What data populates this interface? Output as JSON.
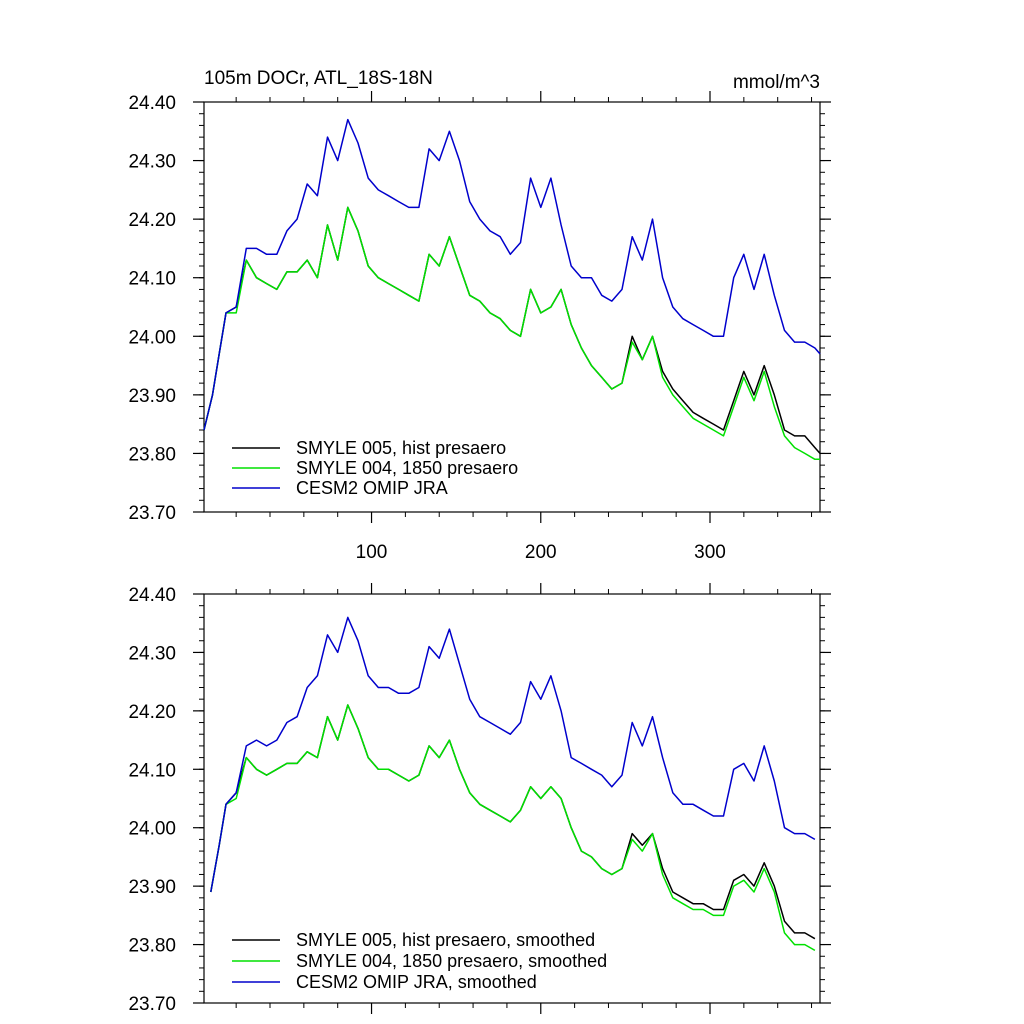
{
  "figure": {
    "title_left": "105m DOCr, ATL_18S-18N",
    "title_right": "mmol/m^3"
  },
  "chart_data": [
    {
      "type": "line",
      "title": "105m DOCr, ATL_18S-18N",
      "units": "mmol/m^3",
      "xlim": [
        1,
        365
      ],
      "ylim": [
        23.7,
        24.4
      ],
      "y_ticks": [
        "23.70",
        "23.80",
        "23.90",
        "24.00",
        "24.10",
        "24.20",
        "24.30",
        "24.40"
      ],
      "x_ticks": [
        "100",
        "200",
        "300"
      ],
      "x_tick_values": [
        100,
        200,
        300
      ],
      "legend_position": "bottom-left",
      "x": [
        1,
        6,
        10,
        14,
        20,
        26,
        32,
        38,
        44,
        50,
        56,
        62,
        68,
        74,
        80,
        86,
        92,
        98,
        104,
        110,
        116,
        122,
        128,
        134,
        140,
        146,
        152,
        158,
        164,
        170,
        176,
        182,
        188,
        194,
        200,
        206,
        212,
        218,
        224,
        230,
        236,
        242,
        248,
        254,
        260,
        266,
        272,
        278,
        284,
        290,
        296,
        302,
        308,
        314,
        320,
        326,
        332,
        338,
        344,
        350,
        356,
        362,
        365
      ],
      "series": [
        {
          "name": "SMYLE 005, hist presaero",
          "color": "#000000",
          "values": [
            23.84,
            23.9,
            23.97,
            24.04,
            24.05,
            24.13,
            24.1,
            24.09,
            24.08,
            24.11,
            24.11,
            24.13,
            24.1,
            24.19,
            24.13,
            24.22,
            24.18,
            24.12,
            24.1,
            24.09,
            24.08,
            24.07,
            24.06,
            24.14,
            24.12,
            24.17,
            24.12,
            24.07,
            24.06,
            24.04,
            24.03,
            24.01,
            24.0,
            24.08,
            24.04,
            24.05,
            24.08,
            24.02,
            23.98,
            23.95,
            23.93,
            23.91,
            23.92,
            24.0,
            23.96,
            24.0,
            23.94,
            23.91,
            23.89,
            23.87,
            23.86,
            23.85,
            23.84,
            23.89,
            23.94,
            23.9,
            23.95,
            23.9,
            23.84,
            23.83,
            23.83,
            23.81,
            23.8
          ]
        },
        {
          "name": "SMYLE 004, 1850 presaero",
          "color": "#00e000",
          "values": [
            23.84,
            23.9,
            23.97,
            24.04,
            24.04,
            24.13,
            24.1,
            24.09,
            24.08,
            24.11,
            24.11,
            24.13,
            24.1,
            24.19,
            24.13,
            24.22,
            24.18,
            24.12,
            24.1,
            24.09,
            24.08,
            24.07,
            24.06,
            24.14,
            24.12,
            24.17,
            24.12,
            24.07,
            24.06,
            24.04,
            24.03,
            24.01,
            24.0,
            24.08,
            24.04,
            24.05,
            24.08,
            24.02,
            23.98,
            23.95,
            23.93,
            23.91,
            23.92,
            23.99,
            23.96,
            24.0,
            23.93,
            23.9,
            23.88,
            23.86,
            23.85,
            23.84,
            23.83,
            23.88,
            23.93,
            23.89,
            23.94,
            23.88,
            23.83,
            23.81,
            23.8,
            23.79,
            23.79
          ]
        },
        {
          "name": "CESM2 OMIP JRA",
          "color": "#0000cc",
          "values": [
            23.84,
            23.9,
            23.97,
            24.04,
            24.05,
            24.15,
            24.15,
            24.14,
            24.14,
            24.18,
            24.2,
            24.26,
            24.24,
            24.34,
            24.3,
            24.37,
            24.33,
            24.27,
            24.25,
            24.24,
            24.23,
            24.22,
            24.22,
            24.32,
            24.3,
            24.35,
            24.3,
            24.23,
            24.2,
            24.18,
            24.17,
            24.14,
            24.16,
            24.27,
            24.22,
            24.27,
            24.19,
            24.12,
            24.1,
            24.1,
            24.07,
            24.06,
            24.08,
            24.17,
            24.13,
            24.2,
            24.1,
            24.05,
            24.03,
            24.02,
            24.01,
            24.0,
            24.0,
            24.1,
            24.14,
            24.08,
            24.14,
            24.07,
            24.01,
            23.99,
            23.99,
            23.98,
            23.97
          ]
        }
      ]
    },
    {
      "type": "line",
      "title": "",
      "xlim": [
        1,
        365
      ],
      "ylim": [
        23.7,
        24.4
      ],
      "y_ticks": [
        "23.70",
        "23.80",
        "23.90",
        "24.00",
        "24.10",
        "24.20",
        "24.30",
        "24.40"
      ],
      "x_ticks": [],
      "x_tick_values": [
        100,
        200,
        300
      ],
      "legend_position": "bottom-left",
      "x": [
        5,
        10,
        14,
        20,
        26,
        32,
        38,
        44,
        50,
        56,
        62,
        68,
        74,
        80,
        86,
        92,
        98,
        104,
        110,
        116,
        122,
        128,
        134,
        140,
        146,
        152,
        158,
        164,
        170,
        176,
        182,
        188,
        194,
        200,
        206,
        212,
        218,
        224,
        230,
        236,
        242,
        248,
        254,
        260,
        266,
        272,
        278,
        284,
        290,
        296,
        302,
        308,
        314,
        320,
        326,
        332,
        338,
        344,
        350,
        356,
        362
      ],
      "series": [
        {
          "name": "SMYLE 005, hist presaero, smoothed",
          "color": "#000000",
          "values": [
            23.89,
            23.97,
            24.04,
            24.06,
            24.12,
            24.1,
            24.09,
            24.1,
            24.11,
            24.11,
            24.13,
            24.12,
            24.19,
            24.15,
            24.21,
            24.17,
            24.12,
            24.1,
            24.1,
            24.09,
            24.08,
            24.09,
            24.14,
            24.12,
            24.15,
            24.1,
            24.06,
            24.04,
            24.03,
            24.02,
            24.01,
            24.03,
            24.07,
            24.05,
            24.07,
            24.05,
            24.0,
            23.96,
            23.95,
            23.93,
            23.92,
            23.93,
            23.99,
            23.97,
            23.99,
            23.93,
            23.89,
            23.88,
            23.87,
            23.87,
            23.86,
            23.86,
            23.91,
            23.92,
            23.9,
            23.94,
            23.9,
            23.84,
            23.82,
            23.82,
            23.81
          ]
        },
        {
          "name": "SMYLE 004, 1850 presaero, smoothed",
          "color": "#00e000",
          "values": [
            23.89,
            23.97,
            24.04,
            24.05,
            24.12,
            24.1,
            24.09,
            24.1,
            24.11,
            24.11,
            24.13,
            24.12,
            24.19,
            24.15,
            24.21,
            24.17,
            24.12,
            24.1,
            24.1,
            24.09,
            24.08,
            24.09,
            24.14,
            24.12,
            24.15,
            24.1,
            24.06,
            24.04,
            24.03,
            24.02,
            24.01,
            24.03,
            24.07,
            24.05,
            24.07,
            24.05,
            24.0,
            23.96,
            23.95,
            23.93,
            23.92,
            23.93,
            23.98,
            23.96,
            23.99,
            23.92,
            23.88,
            23.87,
            23.86,
            23.86,
            23.85,
            23.85,
            23.9,
            23.91,
            23.89,
            23.93,
            23.89,
            23.82,
            23.8,
            23.8,
            23.79
          ]
        },
        {
          "name": "CESM2 OMIP JRA, smoothed",
          "color": "#0000cc",
          "values": [
            23.89,
            23.97,
            24.04,
            24.06,
            24.14,
            24.15,
            24.14,
            24.15,
            24.18,
            24.19,
            24.24,
            24.26,
            24.33,
            24.3,
            24.36,
            24.32,
            24.26,
            24.24,
            24.24,
            24.23,
            24.23,
            24.24,
            24.31,
            24.29,
            24.34,
            24.28,
            24.22,
            24.19,
            24.18,
            24.17,
            24.16,
            24.18,
            24.25,
            24.22,
            24.26,
            24.2,
            24.12,
            24.11,
            24.1,
            24.09,
            24.07,
            24.09,
            24.18,
            24.14,
            24.19,
            24.12,
            24.06,
            24.04,
            24.04,
            24.03,
            24.02,
            24.02,
            24.1,
            24.11,
            24.08,
            24.14,
            24.08,
            24.0,
            23.99,
            23.99,
            23.98
          ]
        }
      ]
    }
  ]
}
